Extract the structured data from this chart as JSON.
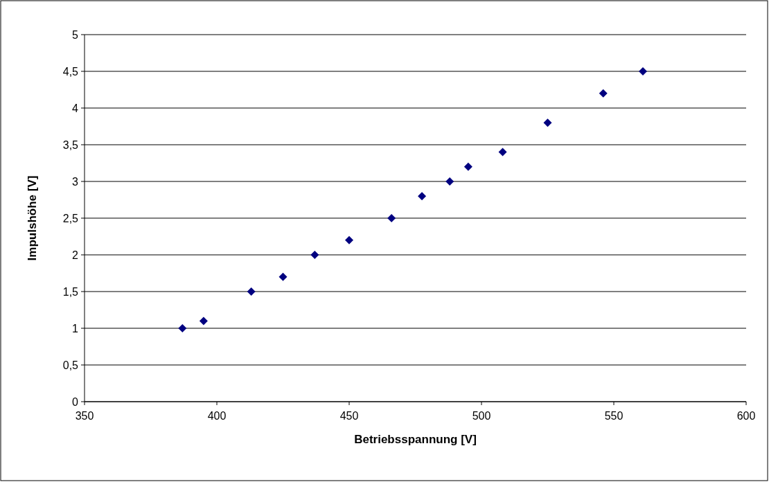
{
  "chart_data": {
    "type": "scatter",
    "xlabel": "Betriebsspannung  [V]",
    "ylabel": "Impulshöhe [V]",
    "x": [
      387,
      395,
      413,
      425,
      437,
      450,
      466,
      477.5,
      488,
      495,
      508,
      525,
      546,
      561
    ],
    "series": [
      {
        "color": "#000080",
        "values": [
          1.0,
          1.1,
          1.5,
          1.7,
          2.0,
          2.2,
          2.5,
          2.8,
          3.0,
          3.2,
          3.4,
          3.8,
          4.2,
          4.5
        ]
      }
    ],
    "xlim": [
      350,
      600
    ],
    "xticks": [
      350,
      400,
      450,
      500,
      550,
      600
    ],
    "ylim": [
      0,
      5
    ],
    "yticks": [
      0,
      {
        "value": 0.5,
        "label": "0,5"
      },
      1,
      {
        "value": 1.5,
        "label": "1,5"
      },
      2,
      {
        "value": 2.5,
        "label": "2,5"
      },
      3,
      {
        "value": 3.5,
        "label": "3,5"
      },
      4,
      {
        "value": 4.5,
        "label": "4,5"
      },
      5
    ],
    "grid": "y",
    "marker": "diamond"
  }
}
